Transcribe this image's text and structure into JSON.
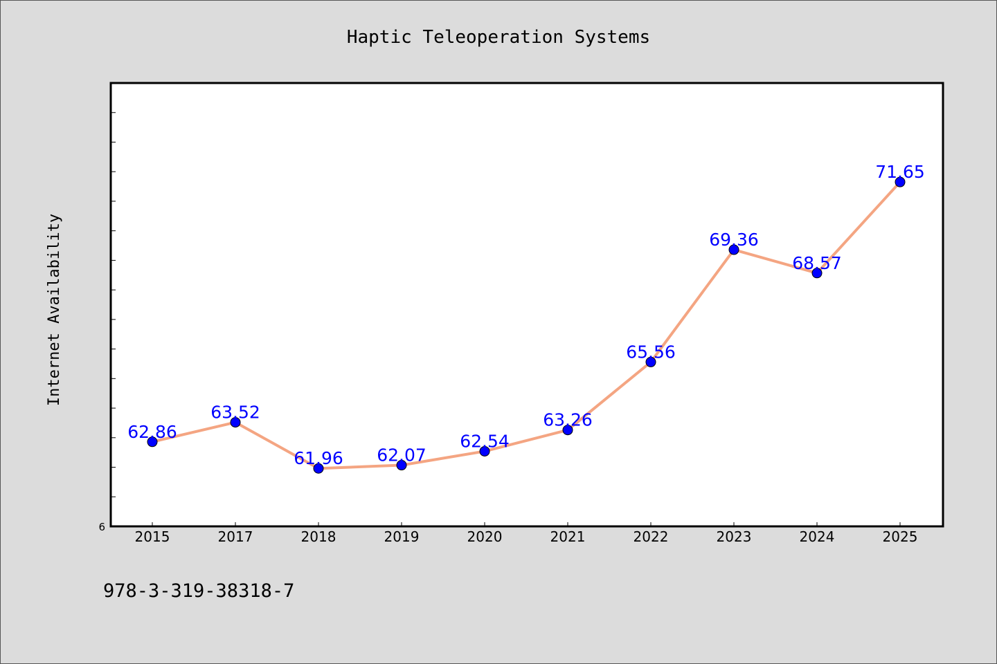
{
  "chart_data": {
    "type": "line",
    "title": "Haptic Teleoperation Systems",
    "xlabel": "",
    "ylabel": "Internet Availability",
    "categories": [
      "2015",
      "2017",
      "2018",
      "2019",
      "2020",
      "2021",
      "2022",
      "2023",
      "2024",
      "2025"
    ],
    "series": [
      {
        "values": [
          62.86,
          63.52,
          61.96,
          62.07,
          62.54,
          63.26,
          65.56,
          69.36,
          68.57,
          71.65
        ]
      }
    ],
    "data_labels": [
      "62.86",
      "63.52",
      "61.96",
      "62.07",
      "62.54",
      "63.26",
      "65.56",
      "69.36",
      "68.57",
      "71.65"
    ],
    "ylim": [
      60,
      75
    ],
    "y_tick_labels": [
      "6"
    ],
    "grid": false,
    "legend": "none",
    "colors": {
      "line": "#f4a582",
      "marker": "#0000ff",
      "data_label": "#0000ff",
      "plot_background": "#ffffff",
      "figure_background": "#dcdcdc"
    }
  },
  "footer": {
    "isbn": "978-3-319-38318-7"
  }
}
